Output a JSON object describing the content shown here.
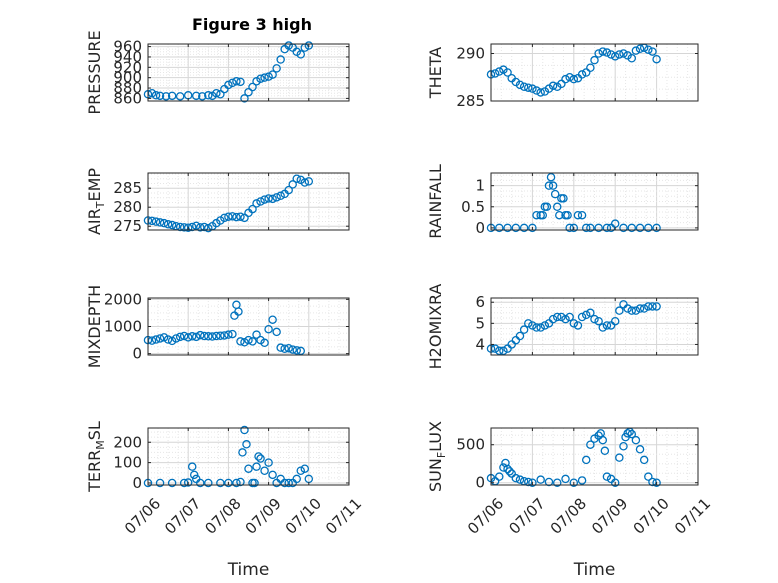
{
  "figure": {
    "title": "Figure 3 high"
  },
  "chart_data": [
    {
      "type": "scatter",
      "ylabel": "PRESSURE",
      "ylim": [
        855,
        965
      ],
      "yticks": [
        860,
        880,
        900,
        920,
        940,
        960
      ],
      "x": [
        0,
        0.1,
        0.2,
        0.3,
        0.45,
        0.6,
        0.8,
        1.0,
        1.2,
        1.35,
        1.5,
        1.6,
        1.7,
        1.8,
        1.9,
        2.0,
        2.1,
        2.2,
        2.3,
        2.4,
        2.5,
        2.6,
        2.7,
        2.8,
        2.9,
        3.0,
        3.1,
        3.2,
        3.3,
        3.4,
        3.5,
        3.6,
        3.7,
        3.8,
        3.9,
        4.0
      ],
      "y": [
        868,
        870,
        866,
        865,
        864,
        865,
        864,
        866,
        865,
        864,
        866,
        865,
        870,
        868,
        878,
        886,
        890,
        893,
        892,
        860,
        872,
        882,
        893,
        898,
        900,
        902,
        906,
        918,
        935,
        955,
        962,
        958,
        950,
        945,
        958,
        962
      ],
      "xlabel": ""
    },
    {
      "type": "scatter",
      "ylabel": "THETA",
      "ylim": [
        285,
        291
      ],
      "yticks": [
        285,
        290
      ],
      "x": [
        0,
        0.1,
        0.2,
        0.3,
        0.4,
        0.5,
        0.6,
        0.7,
        0.8,
        0.9,
        1.0,
        1.1,
        1.2,
        1.3,
        1.4,
        1.5,
        1.6,
        1.7,
        1.8,
        1.9,
        2.0,
        2.1,
        2.2,
        2.3,
        2.4,
        2.5,
        2.6,
        2.7,
        2.8,
        2.9,
        3.0,
        3.1,
        3.2,
        3.3,
        3.4,
        3.5,
        3.6,
        3.7,
        3.8,
        3.9,
        4.0
      ],
      "y": [
        287.8,
        287.9,
        288.1,
        288.3,
        288.0,
        287.4,
        287.0,
        286.7,
        286.5,
        286.4,
        286.3,
        286.1,
        285.9,
        286.0,
        286.3,
        286.6,
        286.5,
        286.8,
        287.3,
        287.5,
        287.3,
        287.4,
        287.8,
        288.0,
        288.5,
        289.3,
        290.0,
        290.2,
        290.1,
        289.9,
        289.7,
        289.9,
        290.0,
        289.8,
        289.5,
        290.3,
        290.5,
        290.6,
        290.4,
        290.2,
        289.4
      ],
      "xlabel": ""
    },
    {
      "type": "scatter",
      "ylabel": "AIR_TEMP",
      "ylim": [
        274,
        289
      ],
      "yticks": [
        275,
        280,
        285
      ],
      "x": [
        0,
        0.1,
        0.2,
        0.3,
        0.4,
        0.5,
        0.6,
        0.7,
        0.8,
        0.9,
        1.0,
        1.1,
        1.2,
        1.3,
        1.4,
        1.5,
        1.6,
        1.7,
        1.8,
        1.9,
        2.0,
        2.1,
        2.2,
        2.3,
        2.4,
        2.5,
        2.6,
        2.7,
        2.8,
        2.9,
        3.0,
        3.1,
        3.2,
        3.3,
        3.4,
        3.5,
        3.6,
        3.7,
        3.8,
        3.9,
        4.0
      ],
      "y": [
        276.5,
        276.4,
        276.2,
        276.0,
        275.8,
        275.5,
        275.3,
        275.0,
        274.8,
        274.7,
        274.6,
        274.8,
        275.1,
        274.7,
        274.8,
        274.5,
        275.0,
        275.8,
        276.5,
        277.2,
        277.5,
        277.6,
        277.4,
        277.5,
        277.2,
        278.5,
        279.5,
        281.0,
        281.5,
        282.0,
        282.3,
        282.2,
        282.6,
        283.0,
        283.5,
        284.5,
        286.0,
        287.5,
        287.2,
        286.5,
        286.8
      ],
      "xlabel": ""
    },
    {
      "type": "scatter",
      "ylabel": "RAINFALL",
      "ylim": [
        -0.05,
        1.3
      ],
      "yticks": [
        0,
        0.5,
        1
      ],
      "x": [
        0,
        0.2,
        0.4,
        0.6,
        0.8,
        1.0,
        1.1,
        1.2,
        1.25,
        1.3,
        1.35,
        1.4,
        1.45,
        1.5,
        1.55,
        1.6,
        1.65,
        1.7,
        1.75,
        1.8,
        1.85,
        1.9,
        2.0,
        2.1,
        2.2,
        2.3,
        2.4,
        2.6,
        2.8,
        2.9,
        3.0,
        3.2,
        3.4,
        3.6,
        3.8,
        4.0
      ],
      "y": [
        0,
        0,
        0,
        0,
        0,
        0,
        0.3,
        0.3,
        0.3,
        0.5,
        0.5,
        1.0,
        1.2,
        1.0,
        0.8,
        0.5,
        0.3,
        0.7,
        0.7,
        0.3,
        0.3,
        0,
        0,
        0.3,
        0.3,
        0,
        0,
        0,
        0,
        0,
        0.1,
        0,
        0,
        0,
        0,
        0
      ],
      "xlabel": ""
    },
    {
      "type": "scatter",
      "ylabel": "MIXDEPTH",
      "ylim": [
        -50,
        2050
      ],
      "yticks": [
        0,
        1000,
        2000
      ],
      "x": [
        0,
        0.1,
        0.2,
        0.3,
        0.4,
        0.5,
        0.6,
        0.7,
        0.8,
        0.9,
        1.0,
        1.1,
        1.2,
        1.3,
        1.4,
        1.5,
        1.6,
        1.7,
        1.8,
        1.9,
        2.0,
        2.1,
        2.15,
        2.2,
        2.25,
        2.3,
        2.4,
        2.5,
        2.6,
        2.7,
        2.8,
        2.9,
        3.0,
        3.1,
        3.2,
        3.3,
        3.4,
        3.5,
        3.6,
        3.7,
        3.8
      ],
      "y": [
        500,
        480,
        520,
        560,
        600,
        520,
        470,
        560,
        620,
        650,
        600,
        640,
        620,
        680,
        650,
        640,
        630,
        650,
        660,
        670,
        700,
        720,
        1400,
        1800,
        1550,
        450,
        420,
        500,
        450,
        700,
        500,
        400,
        900,
        1250,
        800,
        220,
        180,
        200,
        150,
        120,
        100
      ],
      "xlabel": ""
    },
    {
      "type": "scatter",
      "ylabel": "H2OMIXRA",
      "ylim": [
        3.5,
        6.2
      ],
      "yticks": [
        4,
        5,
        6
      ],
      "x": [
        0,
        0.1,
        0.2,
        0.3,
        0.4,
        0.5,
        0.6,
        0.7,
        0.8,
        0.9,
        1.0,
        1.1,
        1.2,
        1.3,
        1.4,
        1.5,
        1.6,
        1.7,
        1.8,
        1.9,
        2.0,
        2.1,
        2.2,
        2.3,
        2.4,
        2.5,
        2.6,
        2.7,
        2.8,
        2.9,
        3.0,
        3.1,
        3.2,
        3.3,
        3.4,
        3.5,
        3.6,
        3.7,
        3.8,
        3.9,
        4.0
      ],
      "y": [
        3.8,
        3.8,
        3.7,
        3.7,
        3.8,
        4.0,
        4.2,
        4.4,
        4.7,
        5.0,
        4.9,
        4.8,
        4.8,
        4.9,
        5.0,
        5.2,
        5.3,
        5.3,
        5.2,
        5.3,
        5.0,
        4.9,
        5.3,
        5.4,
        5.5,
        5.2,
        5.1,
        4.8,
        4.9,
        4.9,
        5.1,
        5.6,
        5.9,
        5.7,
        5.6,
        5.6,
        5.7,
        5.7,
        5.8,
        5.8,
        5.8
      ],
      "xlabel": ""
    },
    {
      "type": "scatter",
      "ylabel": "TERR_MSL",
      "ylim": [
        -10,
        270
      ],
      "yticks": [
        0,
        100,
        200
      ],
      "x": [
        0,
        0.3,
        0.6,
        0.9,
        1.0,
        1.1,
        1.15,
        1.2,
        1.3,
        1.5,
        1.8,
        2.0,
        2.2,
        2.3,
        2.35,
        2.4,
        2.45,
        2.5,
        2.6,
        2.65,
        2.7,
        2.75,
        2.8,
        2.9,
        3.0,
        3.1,
        3.2,
        3.3,
        3.4,
        3.5,
        3.6,
        3.7,
        3.8,
        3.9,
        4.0
      ],
      "y": [
        0,
        0,
        0,
        0,
        2,
        80,
        40,
        20,
        0,
        0,
        0,
        0,
        0,
        5,
        150,
        260,
        190,
        70,
        0,
        0,
        80,
        130,
        120,
        60,
        100,
        40,
        0,
        20,
        0,
        0,
        0,
        20,
        60,
        70,
        20
      ],
      "xlabel": "Time"
    },
    {
      "type": "scatter",
      "ylabel": "SUN_FLUX",
      "ylim": [
        -30,
        720
      ],
      "yticks": [
        0,
        500
      ],
      "x": [
        0,
        0.1,
        0.2,
        0.3,
        0.35,
        0.4,
        0.45,
        0.5,
        0.6,
        0.7,
        0.8,
        0.9,
        1.0,
        1.2,
        1.4,
        1.6,
        1.8,
        2.0,
        2.2,
        2.3,
        2.4,
        2.5,
        2.6,
        2.65,
        2.7,
        2.75,
        2.8,
        2.9,
        3.0,
        3.1,
        3.2,
        3.25,
        3.3,
        3.35,
        3.4,
        3.5,
        3.6,
        3.7,
        3.8,
        3.9,
        4.0
      ],
      "y": [
        60,
        20,
        80,
        200,
        260,
        180,
        150,
        120,
        60,
        40,
        20,
        10,
        0,
        40,
        10,
        0,
        50,
        0,
        30,
        300,
        500,
        580,
        620,
        650,
        560,
        420,
        80,
        50,
        0,
        330,
        480,
        600,
        650,
        670,
        640,
        560,
        440,
        300,
        80,
        10,
        0
      ],
      "xlabel": "Time"
    }
  ],
  "x_tick_labels": [
    "07/06",
    "07/07",
    "07/08",
    "07/09",
    "07/10",
    "07/11"
  ],
  "colors": {
    "marker": "#0072BD",
    "axis": "#262626",
    "grid": "#d6d6d6",
    "minor_grid": "#e6e6e6"
  }
}
